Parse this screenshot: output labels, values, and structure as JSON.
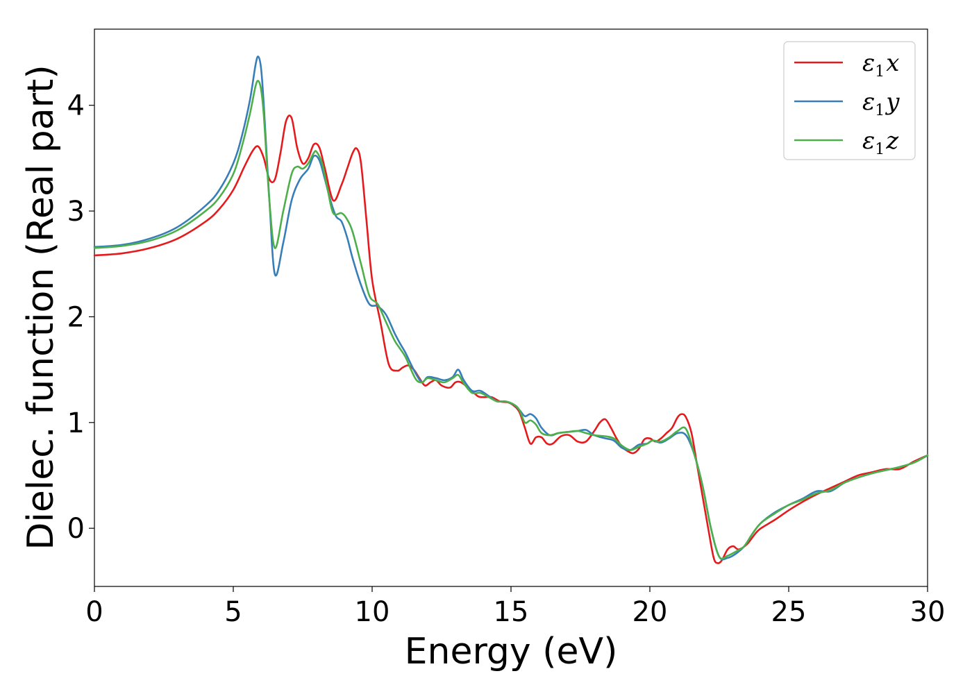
{
  "chart_data": {
    "type": "line",
    "xlabel": "Energy (eV)",
    "ylabel": "Dielec. function (Real part)",
    "xlim": [
      0,
      30
    ],
    "ylim": [
      -0.55,
      4.72
    ],
    "x_ticks": [
      0,
      5,
      10,
      15,
      20,
      25,
      30
    ],
    "y_ticks": [
      0,
      1,
      2,
      3,
      4
    ],
    "x_tick_labels": [
      "0",
      "5",
      "10",
      "15",
      "20",
      "25",
      "30"
    ],
    "y_tick_labels": [
      "0",
      "1",
      "2",
      "3",
      "4"
    ],
    "grid": false,
    "legend_position": "top-right",
    "series": [
      {
        "name": "ε1x",
        "legend_base": "ε",
        "legend_sub": "1",
        "legend_var": "x",
        "color": "#e41a1c",
        "x": [
          0,
          1,
          2,
          3,
          4,
          4.5,
          5,
          5.4,
          5.7,
          5.9,
          6.1,
          6.3,
          6.5,
          6.7,
          6.9,
          7.1,
          7.3,
          7.5,
          7.7,
          7.9,
          8.1,
          8.3,
          8.6,
          8.9,
          9.1,
          9.3,
          9.45,
          9.6,
          9.8,
          10.0,
          10.3,
          10.6,
          10.9,
          11.1,
          11.3,
          11.5,
          11.7,
          11.9,
          12.1,
          12.3,
          12.5,
          12.8,
          13.0,
          13.2,
          13.5,
          13.8,
          14.0,
          14.3,
          14.6,
          14.9,
          15.1,
          15.3,
          15.5,
          15.7,
          15.9,
          16.1,
          16.3,
          16.5,
          16.8,
          17.1,
          17.4,
          17.7,
          18.0,
          18.2,
          18.4,
          18.6,
          18.8,
          19.0,
          19.2,
          19.4,
          19.6,
          19.8,
          20.0,
          20.2,
          20.4,
          20.6,
          20.8,
          21.0,
          21.15,
          21.3,
          21.5,
          21.7,
          21.9,
          22.1,
          22.3,
          22.45,
          22.6,
          22.8,
          23.0,
          23.2,
          23.5,
          23.8,
          24.0,
          24.5,
          25.0,
          25.5,
          26.0,
          26.5,
          27.0,
          27.5,
          28.0,
          28.5,
          29.0,
          29.5,
          30.0
        ],
        "y": [
          2.58,
          2.6,
          2.65,
          2.74,
          2.9,
          3.02,
          3.2,
          3.42,
          3.57,
          3.61,
          3.5,
          3.3,
          3.3,
          3.55,
          3.85,
          3.88,
          3.6,
          3.45,
          3.5,
          3.63,
          3.6,
          3.4,
          3.1,
          3.25,
          3.4,
          3.55,
          3.59,
          3.45,
          2.9,
          2.35,
          1.95,
          1.55,
          1.49,
          1.52,
          1.54,
          1.5,
          1.42,
          1.35,
          1.38,
          1.4,
          1.35,
          1.33,
          1.38,
          1.38,
          1.32,
          1.25,
          1.24,
          1.24,
          1.2,
          1.19,
          1.16,
          1.1,
          0.95,
          0.8,
          0.86,
          0.86,
          0.8,
          0.8,
          0.87,
          0.88,
          0.82,
          0.82,
          0.92,
          1.0,
          1.03,
          0.95,
          0.85,
          0.77,
          0.73,
          0.71,
          0.75,
          0.84,
          0.85,
          0.82,
          0.85,
          0.9,
          0.95,
          1.05,
          1.08,
          1.05,
          0.9,
          0.6,
          0.3,
          0.0,
          -0.28,
          -0.33,
          -0.3,
          -0.2,
          -0.17,
          -0.2,
          -0.15,
          -0.05,
          0.0,
          0.08,
          0.17,
          0.25,
          0.32,
          0.38,
          0.44,
          0.5,
          0.53,
          0.56,
          0.56,
          0.63,
          0.69
        ]
      },
      {
        "name": "ε1y",
        "legend_base": "ε",
        "legend_sub": "1",
        "legend_var": "y",
        "color": "#377eb8",
        "x": [
          0,
          1,
          2,
          3,
          4,
          4.5,
          5,
          5.3,
          5.6,
          5.8,
          5.9,
          6.0,
          6.1,
          6.3,
          6.5,
          6.8,
          7.1,
          7.4,
          7.7,
          7.9,
          8.1,
          8.3,
          8.5,
          8.7,
          8.9,
          9.1,
          9.3,
          9.6,
          9.9,
          10.2,
          10.5,
          10.8,
          11.0,
          11.2,
          11.4,
          11.6,
          11.8,
          12.0,
          12.3,
          12.6,
          12.9,
          13.1,
          13.3,
          13.6,
          13.9,
          14.2,
          14.5,
          14.8,
          15.1,
          15.3,
          15.5,
          15.7,
          15.9,
          16.1,
          16.4,
          16.7,
          17.0,
          17.4,
          17.7,
          18.0,
          18.4,
          18.7,
          19.0,
          19.3,
          19.6,
          19.9,
          20.1,
          20.4,
          20.7,
          21.0,
          21.3,
          21.6,
          21.9,
          22.2,
          22.5,
          22.8,
          23.1,
          23.4,
          23.7,
          24.0,
          24.5,
          25.0,
          25.5,
          26.0,
          26.5,
          27.0,
          27.5,
          28.0,
          28.5,
          29.0,
          29.5,
          30.0
        ],
        "y": [
          2.66,
          2.68,
          2.74,
          2.85,
          3.05,
          3.2,
          3.45,
          3.7,
          4.05,
          4.38,
          4.46,
          4.35,
          4.0,
          3.1,
          2.4,
          2.7,
          3.1,
          3.3,
          3.4,
          3.52,
          3.48,
          3.3,
          3.1,
          2.95,
          2.9,
          2.75,
          2.55,
          2.3,
          2.12,
          2.1,
          2.02,
          1.85,
          1.75,
          1.66,
          1.55,
          1.45,
          1.38,
          1.43,
          1.42,
          1.4,
          1.43,
          1.5,
          1.4,
          1.3,
          1.3,
          1.25,
          1.2,
          1.2,
          1.17,
          1.12,
          1.06,
          1.08,
          1.04,
          0.95,
          0.88,
          0.9,
          0.91,
          0.92,
          0.93,
          0.88,
          0.85,
          0.83,
          0.76,
          0.74,
          0.79,
          0.8,
          0.83,
          0.81,
          0.85,
          0.9,
          0.88,
          0.7,
          0.4,
          0.0,
          -0.27,
          -0.28,
          -0.24,
          -0.17,
          -0.05,
          0.05,
          0.15,
          0.22,
          0.28,
          0.35,
          0.35,
          0.43,
          0.48,
          0.52,
          0.55,
          0.58,
          0.62,
          0.69
        ]
      },
      {
        "name": "ε1z",
        "legend_base": "ε",
        "legend_sub": "1",
        "legend_var": "z",
        "color": "#4daf4a",
        "x": [
          0,
          1,
          2,
          3,
          4,
          4.5,
          5,
          5.3,
          5.6,
          5.8,
          5.9,
          6.0,
          6.1,
          6.3,
          6.5,
          6.8,
          7.1,
          7.3,
          7.5,
          7.7,
          7.9,
          8.0,
          8.2,
          8.4,
          8.6,
          8.9,
          9.1,
          9.3,
          9.6,
          9.9,
          10.2,
          10.5,
          10.8,
          11.0,
          11.2,
          11.4,
          11.6,
          11.8,
          12.0,
          12.3,
          12.6,
          12.9,
          13.1,
          13.3,
          13.6,
          13.9,
          14.2,
          14.5,
          14.8,
          15.1,
          15.3,
          15.5,
          15.7,
          15.9,
          16.1,
          16.4,
          16.7,
          17.0,
          17.4,
          17.7,
          18.0,
          18.4,
          18.7,
          19.0,
          19.3,
          19.6,
          19.9,
          20.1,
          20.4,
          20.7,
          21.0,
          21.3,
          21.6,
          21.9,
          22.2,
          22.5,
          22.8,
          23.1,
          23.4,
          23.7,
          24.0,
          24.5,
          25.0,
          25.5,
          26.0,
          26.5,
          27.0,
          27.5,
          28.0,
          28.5,
          29.0,
          29.5,
          30.0
        ],
        "y": [
          2.65,
          2.67,
          2.72,
          2.82,
          3.0,
          3.13,
          3.35,
          3.6,
          3.92,
          4.18,
          4.23,
          4.15,
          3.9,
          3.1,
          2.65,
          3.0,
          3.35,
          3.42,
          3.4,
          3.45,
          3.55,
          3.56,
          3.45,
          3.2,
          2.98,
          2.98,
          2.92,
          2.8,
          2.5,
          2.2,
          2.12,
          1.95,
          1.78,
          1.7,
          1.62,
          1.5,
          1.4,
          1.38,
          1.42,
          1.4,
          1.38,
          1.42,
          1.45,
          1.37,
          1.28,
          1.28,
          1.24,
          1.2,
          1.2,
          1.17,
          1.12,
          1.0,
          1.02,
          0.98,
          0.9,
          0.88,
          0.9,
          0.91,
          0.92,
          0.9,
          0.88,
          0.87,
          0.85,
          0.78,
          0.74,
          0.77,
          0.8,
          0.83,
          0.82,
          0.86,
          0.92,
          0.94,
          0.7,
          0.4,
          0.0,
          -0.27,
          -0.26,
          -0.22,
          -0.17,
          -0.05,
          0.05,
          0.14,
          0.22,
          0.27,
          0.33,
          0.36,
          0.43,
          0.48,
          0.52,
          0.55,
          0.58,
          0.62,
          0.69
        ]
      }
    ]
  }
}
